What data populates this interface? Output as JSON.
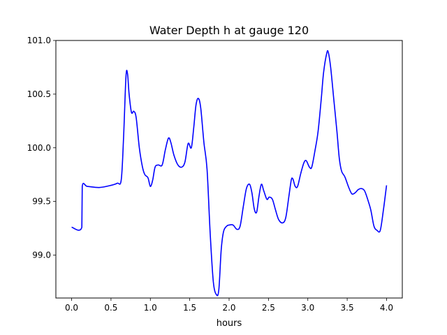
{
  "chart_data": {
    "type": "line",
    "title": "Water Depth h at gauge 120",
    "xlabel": "hours",
    "ylabel": "",
    "xlim": [
      -0.2,
      4.2
    ],
    "ylim": [
      98.6,
      101.0
    ],
    "xticks": [
      0.0,
      0.5,
      1.0,
      1.5,
      2.0,
      2.5,
      3.0,
      3.5,
      4.0
    ],
    "xtick_labels": [
      "0.0",
      "0.5",
      "1.0",
      "1.5",
      "2.0",
      "2.5",
      "3.0",
      "3.5",
      "4.0"
    ],
    "yticks": [
      99.0,
      99.5,
      100.0,
      100.5,
      101.0
    ],
    "ytick_labels": [
      "99.0",
      "99.5",
      "100.0",
      "100.5",
      "101.0"
    ],
    "grid": false,
    "series": [
      {
        "color": "#0000ff",
        "points": [
          [
            0.0,
            99.26
          ],
          [
            0.13,
            99.26
          ],
          [
            0.135,
            99.64
          ],
          [
            0.2,
            99.64
          ],
          [
            0.35,
            99.63
          ],
          [
            0.5,
            99.65
          ],
          [
            0.58,
            99.67
          ],
          [
            0.63,
            99.7
          ],
          [
            0.66,
            100.1
          ],
          [
            0.69,
            100.66
          ],
          [
            0.71,
            100.69
          ],
          [
            0.73,
            100.5
          ],
          [
            0.76,
            100.33
          ],
          [
            0.79,
            100.34
          ],
          [
            0.82,
            100.28
          ],
          [
            0.86,
            100.0
          ],
          [
            0.9,
            99.82
          ],
          [
            0.93,
            99.75
          ],
          [
            0.97,
            99.72
          ],
          [
            1.0,
            99.64
          ],
          [
            1.03,
            99.7
          ],
          [
            1.06,
            99.82
          ],
          [
            1.1,
            99.84
          ],
          [
            1.15,
            99.84
          ],
          [
            1.19,
            99.98
          ],
          [
            1.23,
            100.09
          ],
          [
            1.26,
            100.05
          ],
          [
            1.3,
            99.93
          ],
          [
            1.35,
            99.84
          ],
          [
            1.4,
            99.82
          ],
          [
            1.44,
            99.87
          ],
          [
            1.48,
            100.04
          ],
          [
            1.52,
            100.0
          ],
          [
            1.55,
            100.18
          ],
          [
            1.58,
            100.4
          ],
          [
            1.61,
            100.46
          ],
          [
            1.64,
            100.37
          ],
          [
            1.68,
            100.05
          ],
          [
            1.72,
            99.8
          ],
          [
            1.76,
            99.2
          ],
          [
            1.8,
            98.75
          ],
          [
            1.84,
            98.63
          ],
          [
            1.87,
            98.68
          ],
          [
            1.9,
            99.05
          ],
          [
            1.93,
            99.22
          ],
          [
            1.97,
            99.27
          ],
          [
            2.0,
            99.28
          ],
          [
            2.05,
            99.28
          ],
          [
            2.1,
            99.24
          ],
          [
            2.14,
            99.27
          ],
          [
            2.18,
            99.45
          ],
          [
            2.22,
            99.62
          ],
          [
            2.26,
            99.66
          ],
          [
            2.29,
            99.58
          ],
          [
            2.32,
            99.43
          ],
          [
            2.35,
            99.4
          ],
          [
            2.38,
            99.55
          ],
          [
            2.41,
            99.66
          ],
          [
            2.44,
            99.6
          ],
          [
            2.48,
            99.52
          ],
          [
            2.51,
            99.54
          ],
          [
            2.55,
            99.52
          ],
          [
            2.59,
            99.42
          ],
          [
            2.63,
            99.33
          ],
          [
            2.68,
            99.3
          ],
          [
            2.72,
            99.35
          ],
          [
            2.76,
            99.55
          ],
          [
            2.79,
            99.7
          ],
          [
            2.81,
            99.71
          ],
          [
            2.84,
            99.64
          ],
          [
            2.87,
            99.64
          ],
          [
            2.91,
            99.76
          ],
          [
            2.95,
            99.86
          ],
          [
            2.98,
            99.88
          ],
          [
            3.02,
            99.82
          ],
          [
            3.05,
            99.82
          ],
          [
            3.09,
            99.97
          ],
          [
            3.13,
            100.15
          ],
          [
            3.17,
            100.45
          ],
          [
            3.2,
            100.7
          ],
          [
            3.24,
            100.88
          ],
          [
            3.26,
            100.89
          ],
          [
            3.29,
            100.75
          ],
          [
            3.33,
            100.45
          ],
          [
            3.37,
            100.15
          ],
          [
            3.4,
            99.9
          ],
          [
            3.43,
            99.78
          ],
          [
            3.47,
            99.73
          ],
          [
            3.52,
            99.63
          ],
          [
            3.56,
            99.57
          ],
          [
            3.6,
            99.58
          ],
          [
            3.64,
            99.61
          ],
          [
            3.68,
            99.62
          ],
          [
            3.72,
            99.6
          ],
          [
            3.76,
            99.52
          ],
          [
            3.8,
            99.42
          ],
          [
            3.84,
            99.27
          ],
          [
            3.88,
            99.23
          ],
          [
            3.92,
            99.23
          ],
          [
            3.96,
            99.42
          ],
          [
            4.0,
            99.65
          ]
        ]
      }
    ]
  }
}
